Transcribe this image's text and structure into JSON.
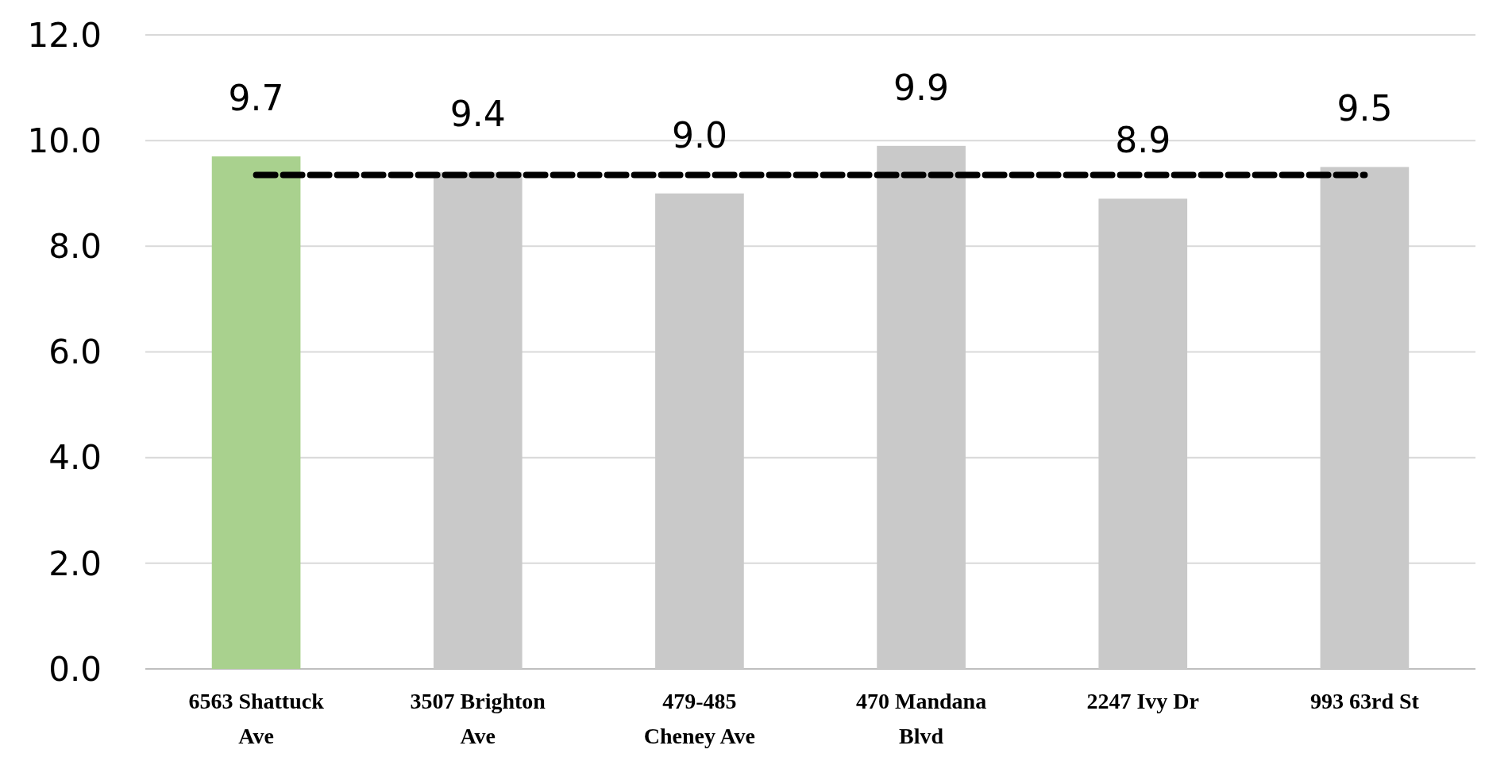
{
  "chart_data": {
    "type": "bar",
    "categories": [
      "6563 Shattuck Ave",
      "3507 Brighton Ave",
      "479-485 Cheney Ave",
      "470 Mandana Blvd",
      "2247 Ivy Dr",
      "993 63rd St"
    ],
    "series": [
      {
        "values": [
          9.7,
          9.4,
          9.0,
          9.9,
          8.9,
          9.5
        ],
        "colors": [
          "#a9d18e",
          "#c9c9c9",
          "#c9c9c9",
          "#c9c9c9",
          "#c9c9c9",
          "#c9c9c9"
        ],
        "value_labels": [
          "9.7",
          "9.4",
          "9.0",
          "9.9",
          "8.9",
          "9.5"
        ]
      },
      {
        "type": "line",
        "color": "#000000",
        "line_style": "dashed",
        "marker": "none",
        "values": [
          9.35,
          9.35,
          9.35,
          9.35,
          9.35,
          9.35
        ]
      }
    ],
    "ylim": [
      0,
      12
    ],
    "yticks": [
      {
        "value": 0,
        "label": "0.0"
      },
      {
        "value": 2,
        "label": "2.0"
      },
      {
        "value": 4,
        "label": "4.0"
      },
      {
        "value": 6,
        "label": "6.0"
      },
      {
        "value": 8,
        "label": "8.0"
      },
      {
        "value": 10,
        "label": "10.0"
      },
      {
        "value": 12,
        "label": "12.0"
      }
    ],
    "grid": "y"
  }
}
